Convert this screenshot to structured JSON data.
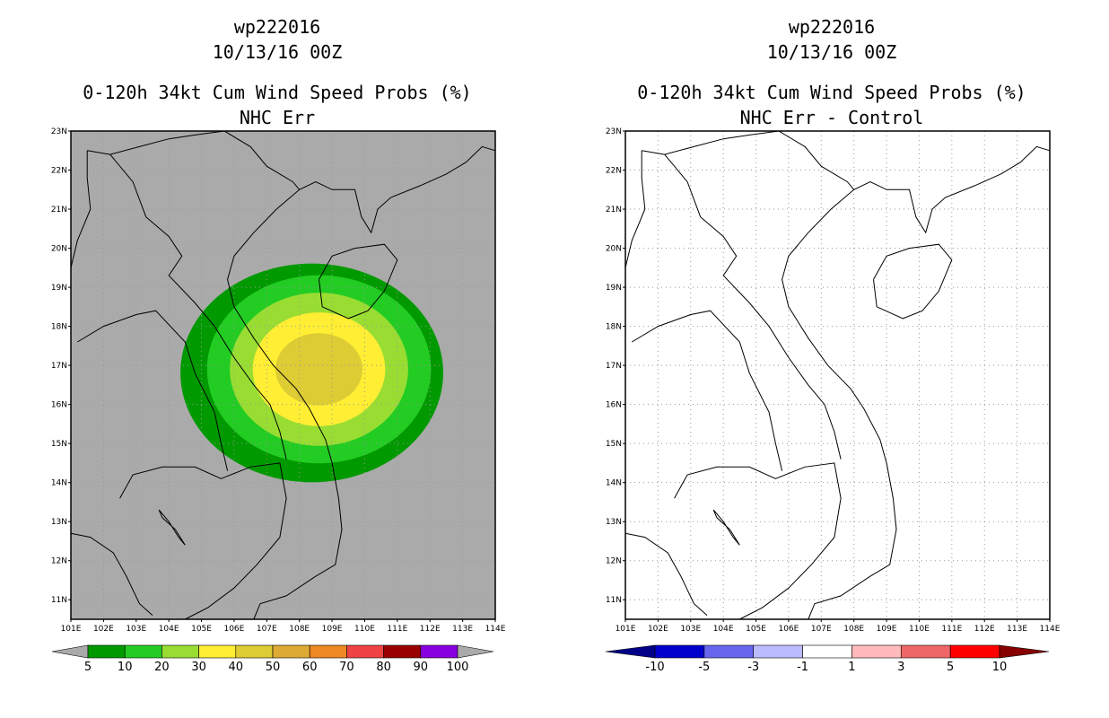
{
  "panels": [
    {
      "id": "left",
      "title1": "wp222016",
      "title2": "10/13/16 00Z",
      "title3": "0-120h 34kt Cum Wind Speed Probs (%)",
      "title4": "NHC Err",
      "background": "#aaaaaa"
    },
    {
      "id": "right",
      "title1": "wp222016",
      "title2": "10/13/16 00Z",
      "title3": "0-120h 34kt Cum Wind Speed Probs (%)",
      "title4": "NHC Err - Control",
      "background": "#ffffff"
    }
  ],
  "chart_data": [
    {
      "type": "heatmap",
      "title": "0-120h 34kt Cum Wind Speed Probs (%) NHC Err",
      "xlim": [
        101,
        114
      ],
      "ylim": [
        10.5,
        23
      ],
      "x_ticks": [
        "101E",
        "102E",
        "103E",
        "104E",
        "105E",
        "106E",
        "107E",
        "108E",
        "109E",
        "110E",
        "111E",
        "112E",
        "113E",
        "114E"
      ],
      "y_ticks": [
        "11N",
        "12N",
        "13N",
        "14N",
        "15N",
        "16N",
        "17N",
        "18N",
        "19N",
        "20N",
        "21N",
        "22N",
        "23N"
      ],
      "storm_center": {
        "lon": 108.6,
        "lat": 16.9
      },
      "contour_levels": [
        5,
        10,
        20,
        30,
        40
      ],
      "contour_colors": [
        "#009900",
        "#22cc22",
        "#99dd33",
        "#ffee33",
        "#ddcc33"
      ],
      "colorbar": {
        "labels": [
          "5",
          "10",
          "20",
          "30",
          "40",
          "50",
          "60",
          "70",
          "80",
          "90",
          "100"
        ],
        "colors": [
          "#009900",
          "#22cc22",
          "#99dd33",
          "#ffee33",
          "#ddcc33",
          "#ddaa33",
          "#ee8822",
          "#ee4444",
          "#990000",
          "#8800dd"
        ],
        "under_color": "#aaaaaa",
        "over_color": "#aaaaaa"
      }
    },
    {
      "type": "heatmap",
      "title": "0-120h 34kt Cum Wind Speed Probs (%) NHC Err - Control",
      "xlim": [
        101,
        114
      ],
      "ylim": [
        10.5,
        23
      ],
      "x_ticks": [
        "101E",
        "102E",
        "103E",
        "104E",
        "105E",
        "106E",
        "107E",
        "108E",
        "109E",
        "110E",
        "111E",
        "112E",
        "113E",
        "114E"
      ],
      "y_ticks": [
        "11N",
        "12N",
        "13N",
        "14N",
        "15N",
        "16N",
        "17N",
        "18N",
        "19N",
        "20N",
        "21N",
        "22N",
        "23N"
      ],
      "colorbar": {
        "labels": [
          "-10",
          "-5",
          "-3",
          "-1",
          "1",
          "3",
          "5",
          "10"
        ],
        "colors": [
          "#0000cc",
          "#6666ee",
          "#bbbbff",
          "#ffffff",
          "#ffbbbb",
          "#ee6666",
          "#ff0000"
        ],
        "under_color": "#000088",
        "over_color": "#880000"
      }
    }
  ]
}
